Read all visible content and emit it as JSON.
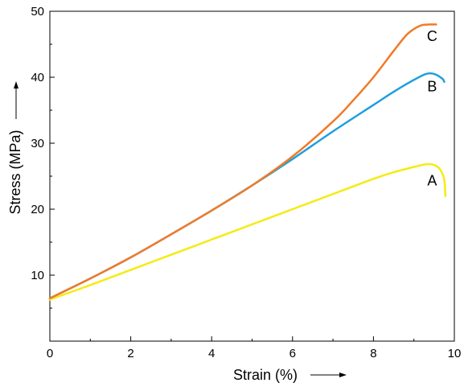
{
  "chart_data": {
    "type": "line",
    "title": "",
    "xlabel": "Strain (%)",
    "ylabel": "Stress (MPa)",
    "xlim": [
      0,
      10
    ],
    "ylim": [
      0,
      50
    ],
    "xticks": [
      0,
      2,
      4,
      6,
      8,
      10
    ],
    "yticks": [
      10,
      20,
      30,
      40,
      50
    ],
    "x_tick_labels": [
      "0",
      "2",
      "4",
      "6",
      "8",
      "10"
    ],
    "y_tick_labels": [
      "10",
      "20",
      "30",
      "40",
      "50"
    ],
    "grid": false,
    "series": [
      {
        "label": "A",
        "color": "#f5eb12",
        "x": [
          0,
          1,
          2,
          3,
          4,
          5,
          6,
          7,
          8,
          8.5,
          9,
          9.3,
          9.5,
          9.65,
          9.75,
          9.78
        ],
        "y": [
          6.3,
          8.5,
          10.8,
          13.1,
          15.4,
          17.7,
          20.0,
          22.3,
          24.6,
          25.6,
          26.4,
          26.8,
          26.7,
          26.0,
          24.5,
          22.0
        ]
      },
      {
        "label": "B",
        "color": "#1e9fdc",
        "x": [
          0,
          1,
          2,
          3,
          4,
          5,
          6,
          7,
          8,
          8.5,
          9,
          9.3,
          9.5,
          9.7,
          9.75
        ],
        "y": [
          6.5,
          9.5,
          12.7,
          16.2,
          19.8,
          23.6,
          27.6,
          31.8,
          35.8,
          37.8,
          39.6,
          40.5,
          40.5,
          39.8,
          39.3
        ]
      },
      {
        "label": "C",
        "color": "#f07a28",
        "x": [
          0,
          1,
          2,
          3,
          4,
          5,
          6,
          7,
          7.5,
          8,
          8.5,
          8.8,
          9,
          9.2,
          9.4,
          9.55
        ],
        "y": [
          6.5,
          9.5,
          12.7,
          16.2,
          19.8,
          23.6,
          28.0,
          33.3,
          36.5,
          40.0,
          44.0,
          46.3,
          47.3,
          47.9,
          48.0,
          48.0
        ]
      }
    ],
    "axis_arrows": true
  }
}
